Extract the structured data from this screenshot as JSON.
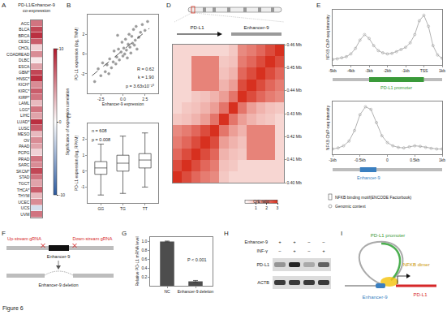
{
  "figure_label": "Figure 6",
  "chart_data": [
    {
      "panel": "A",
      "type": "heatmap",
      "title_lines": [
        "PD-L1/Enhancer-9",
        "co-expression"
      ],
      "categories": [
        "ACC",
        "BLCA",
        "BRCA",
        "CESC",
        "CHOL",
        "COADREAD",
        "DLBC",
        "ESCA",
        "GBM*",
        "HNSC*",
        "KICH*",
        "KIRC*",
        "KIRP*",
        "LAML",
        "LGG*",
        "LIHC",
        "LUAD*",
        "LUSC",
        "MESO",
        "OV",
        "PAAD",
        "PCPG",
        "PRAD",
        "SARC",
        "SKCM*",
        "STAD",
        "TGCT",
        "THCA*",
        "THYM",
        "UCEC",
        "UCS",
        "UVM"
      ],
      "values": [
        6,
        8,
        9,
        7,
        2,
        5,
        1,
        4,
        8,
        9,
        5,
        7,
        6,
        3,
        6,
        4,
        9,
        7,
        3,
        5,
        4,
        2,
        6,
        5,
        8,
        6,
        4,
        7,
        3,
        5,
        -2,
        6
      ],
      "colorbar": {
        "title": "Significance of expression correlation",
        "range": [
          -10,
          10
        ],
        "ticks": [
          -10,
          0,
          10
        ]
      },
      "tick_labels": "y"
    },
    {
      "panel": "B",
      "type": "scatter",
      "xlabel": "Enhancer-9 expression",
      "ylabel": "PD-L1 expression (log, TMM)",
      "x": [
        -3.2,
        -2.8,
        -2.5,
        -2.3,
        -2.0,
        -1.8,
        -1.6,
        -1.5,
        -1.3,
        -1.1,
        -1.0,
        -0.8,
        -0.7,
        -0.5,
        -0.4,
        -0.2,
        -0.1,
        0.0,
        0.1,
        0.2,
        0.3,
        0.4,
        0.5,
        0.6,
        0.7,
        0.8,
        0.9,
        1.0,
        1.1,
        1.2,
        1.3,
        1.4,
        1.5,
        1.6,
        1.8,
        2.0,
        2.2,
        2.5,
        2.8,
        -0.6
      ],
      "values": [
        -2.8,
        -1.5,
        -2.2,
        -0.9,
        -1.8,
        -1.1,
        -2.0,
        -0.5,
        -1.4,
        -0.8,
        0.3,
        -1.0,
        -0.3,
        0.5,
        -0.6,
        0.2,
        1.2,
        -0.2,
        0.6,
        0.0,
        1.5,
        0.4,
        -0.4,
        1.0,
        2.0,
        0.7,
        0.1,
        1.8,
        1.1,
        2.5,
        0.9,
        1.4,
        2.8,
        0.5,
        1.7,
        2.2,
        3.0,
        2.4,
        3.3,
        1.9
      ],
      "color": "#9a9a9a",
      "marker": "circle",
      "trend": {
        "x": [
          -3.5,
          3.0
        ],
        "values": [
          -2.2,
          2.6
        ],
        "line_style": "dashed"
      },
      "xlim": [
        -4,
        4
      ],
      "ylim": [
        -4,
        4
      ],
      "xticks": [
        -2.5,
        {
          "value": 0,
          "label": "0.0"
        },
        2.5
      ],
      "yticks": [
        -2,
        0,
        2
      ],
      "annotations": [
        "R = 0.62",
        "k = 1.90",
        "p = 3.63x10⁻¹⁰"
      ]
    },
    {
      "panel": "C",
      "type": "box",
      "ylabel": "PD-L1 expression (log, RPKM)",
      "categories": [
        "GG",
        "TG",
        "TT"
      ],
      "lower": [
        -1.5,
        -1.4,
        -1.0
      ],
      "q1": [
        -0.2,
        0.0,
        0.2
      ],
      "median": [
        0.2,
        0.5,
        0.7
      ],
      "q3": [
        0.6,
        1.0,
        1.1
      ],
      "upper": [
        1.7,
        2.2,
        2.4
      ],
      "ylim": [
        -2,
        3
      ],
      "yticks": [
        -1,
        0,
        1,
        2
      ],
      "annotations": [
        "n = 608",
        "p = 0.008"
      ]
    },
    {
      "panel": "D",
      "type": "heatmap",
      "tracks": [
        "PD-L1",
        "Enhancer-9"
      ],
      "x": [
        0.4025,
        0.4075,
        0.4125,
        0.4175,
        0.4225,
        0.4275,
        0.4325,
        0.4375,
        0.4425,
        0.4475,
        0.4525,
        0.4575
      ],
      "y": [
        0.4025,
        0.4075,
        0.4125,
        0.4175,
        0.4225,
        0.4275,
        0.4325,
        0.4375,
        0.4425,
        0.4475,
        0.4525,
        0.4575
      ],
      "cells": [
        [
          3.0,
          2.6,
          2.2,
          1.9,
          1.7,
          0.8,
          0.6,
          0.6,
          0.6,
          0.6,
          0.6,
          0.6
        ],
        [
          2.6,
          3.0,
          2.6,
          2.2,
          1.9,
          0.9,
          0.8,
          0.6,
          0.6,
          0.6,
          0.6,
          0.6
        ],
        [
          2.2,
          2.6,
          3.0,
          2.6,
          2.2,
          1.1,
          0.9,
          0.8,
          1.8,
          1.8,
          1.8,
          0.6
        ],
        [
          1.9,
          2.2,
          2.6,
          3.0,
          2.6,
          1.4,
          1.1,
          0.9,
          1.8,
          1.8,
          1.8,
          0.6
        ],
        [
          1.7,
          1.9,
          2.2,
          2.6,
          3.0,
          2.0,
          1.4,
          1.1,
          1.8,
          1.8,
          1.8,
          0.6
        ],
        [
          0.8,
          0.9,
          1.1,
          1.4,
          2.0,
          3.0,
          2.0,
          1.4,
          1.1,
          0.9,
          0.8,
          0.6
        ],
        [
          0.6,
          0.8,
          0.9,
          1.1,
          1.4,
          2.0,
          3.0,
          2.0,
          1.4,
          1.1,
          0.9,
          0.8
        ],
        [
          0.6,
          0.6,
          0.8,
          0.9,
          1.1,
          1.4,
          2.0,
          3.0,
          2.6,
          2.2,
          1.9,
          1.7
        ],
        [
          0.6,
          0.6,
          1.8,
          1.8,
          1.8,
          1.1,
          1.4,
          2.6,
          3.0,
          2.6,
          2.2,
          1.9
        ],
        [
          0.6,
          0.6,
          1.8,
          1.8,
          1.8,
          0.9,
          1.1,
          2.2,
          2.6,
          3.0,
          2.6,
          2.2
        ],
        [
          0.6,
          0.6,
          1.8,
          1.8,
          1.8,
          0.8,
          0.9,
          1.9,
          2.2,
          2.6,
          3.0,
          2.6
        ],
        [
          0.6,
          0.6,
          0.6,
          0.6,
          0.6,
          0.6,
          0.8,
          1.7,
          1.9,
          2.2,
          2.6,
          3.0
        ]
      ],
      "xlim": [
        0.4,
        0.46
      ],
      "ylim": [
        0.4,
        0.46
      ],
      "yticks": [
        {
          "value": 0.4,
          "label": "0.40 Mb"
        },
        {
          "value": 0.41,
          "label": "0.41 Mb"
        },
        {
          "value": 0.42,
          "label": "0.42 Mb"
        },
        {
          "value": 0.43,
          "label": "0.43 Mb"
        },
        {
          "value": 0.44,
          "label": "0.44 Mb"
        },
        {
          "value": 0.45,
          "label": "0.45 Mb"
        },
        {
          "value": 0.46,
          "label": "0.46 Mb"
        }
      ],
      "colorbar": {
        "title": "O/E ratio",
        "range": [
          0,
          3
        ],
        "ticks": [
          1,
          2,
          3
        ]
      },
      "tick_labels": "y"
    },
    {
      "panel": "E",
      "type": "line",
      "ylabel": "NFKB ChIP-seq intensity",
      "x": [
        -5,
        -4.75,
        -4.5,
        -4.25,
        -4,
        -3.75,
        -3.5,
        -3.25,
        -3,
        -2.75,
        -2.5,
        -2.25,
        -2,
        -1.75,
        -1.5,
        -1.25,
        -1,
        -0.75,
        -0.5,
        -0.25,
        0,
        0.25,
        0.5,
        0.75,
        1
      ],
      "values": [
        1.0,
        1.1,
        1.3,
        1.5,
        2.0,
        3.0,
        4.5,
        5.5,
        4.8,
        3.5,
        2.6,
        2.2,
        2.0,
        2.1,
        2.4,
        2.8,
        3.2,
        4.0,
        5.5,
        8.0,
        9.0,
        7.0,
        3.5,
        1.8,
        1.2
      ],
      "color": "#a0a0a0",
      "marker": "circle",
      "xlim": [
        -5,
        1
      ],
      "ylim": [
        0,
        10
      ],
      "xticks": [
        {
          "value": -5,
          "label": "-5kb"
        },
        {
          "value": -4,
          "label": "-4kb"
        },
        {
          "value": -3,
          "label": "-3kb"
        },
        {
          "value": -2,
          "label": "-2kb"
        },
        {
          "value": -1,
          "label": "-1kb"
        },
        {
          "value": 0,
          "label": "TSS"
        },
        {
          "value": 1,
          "label": "1kb"
        }
      ],
      "tick_labels": "x",
      "region": [
        -3,
        0
      ],
      "region_label": "PD-L1 promoter",
      "legend_items": [
        "NFKB binding motif(ENCODE Factorbook)",
        "Genomic context"
      ]
    },
    {
      "panel": "E",
      "type": "line",
      "ylabel": "NFKB ChIP-seq intensity",
      "x": [
        -1,
        -0.9,
        -0.8,
        -0.7,
        -0.6,
        -0.5,
        -0.4,
        -0.3,
        -0.2,
        -0.1,
        0,
        0.1,
        0.2,
        0.3,
        0.4,
        0.5,
        0.6,
        0.7,
        0.8,
        0.9,
        1
      ],
      "values": [
        1.0,
        1.2,
        1.6,
        2.5,
        4.5,
        7.5,
        9.0,
        8.5,
        6.0,
        3.5,
        2.2,
        1.6,
        1.3,
        1.2,
        1.4,
        1.6,
        1.5,
        1.3,
        1.1,
        1.0,
        1.0
      ],
      "color": "#a0a0a0",
      "marker": "circle",
      "xlim": [
        -1,
        1
      ],
      "ylim": [
        0,
        10
      ],
      "xticks": [
        {
          "value": -1,
          "label": "-1kb"
        },
        {
          "value": -0.5,
          "label": "-0.5kb"
        },
        0,
        {
          "value": 0.5,
          "label": "0.5kb"
        },
        {
          "value": 1,
          "label": "1kb"
        }
      ],
      "tick_labels": "x",
      "region": [
        -0.5,
        -0.2
      ],
      "region_label": "Enhancer-9"
    },
    {
      "panel": "G",
      "type": "bar",
      "ylabel": "Relative PD-L1 mRNA level",
      "categories": [
        "NC",
        "Enhancer-9 deletion"
      ],
      "values": [
        1.0,
        0.1
      ],
      "errors": [
        0.01,
        0.02
      ],
      "color": "#4d4d4d",
      "ylim": [
        0,
        1.1
      ],
      "yticks": [
        0.2,
        0.4,
        0.6,
        0.8,
        {
          "value": 1,
          "label": "1.0"
        }
      ],
      "annotations": [
        "P < 0.001"
      ]
    }
  ],
  "diagrams": [
    {
      "panel": "F",
      "type": "deletion_scheme",
      "upstream": "Up-stream gRNA",
      "downstream": "Down-stream gRNA",
      "element": "Enhancer-9",
      "result": "Enhancer-9 deletion"
    },
    {
      "panel": "H",
      "type": "blot",
      "conditions": [
        {
          "label": "Enhancer-9",
          "values": [
            "+",
            "+",
            "−",
            "−"
          ]
        },
        {
          "label": "INF-γ",
          "values": [
            "−",
            "+",
            "−",
            "+"
          ]
        }
      ],
      "bands": [
        {
          "label": "PD-L1",
          "intensity": [
            0.35,
            0.9,
            0.25,
            0.6
          ]
        },
        {
          "label": "ACTB",
          "intensity": [
            0.8,
            0.8,
            0.8,
            0.8
          ]
        }
      ]
    },
    {
      "panel": "I",
      "type": "loop_model",
      "promoter": "PD-L1 promoter",
      "factor": "NFKB dimer",
      "enhancer": "Enhancer-9",
      "gene": "PD-L1"
    }
  ]
}
